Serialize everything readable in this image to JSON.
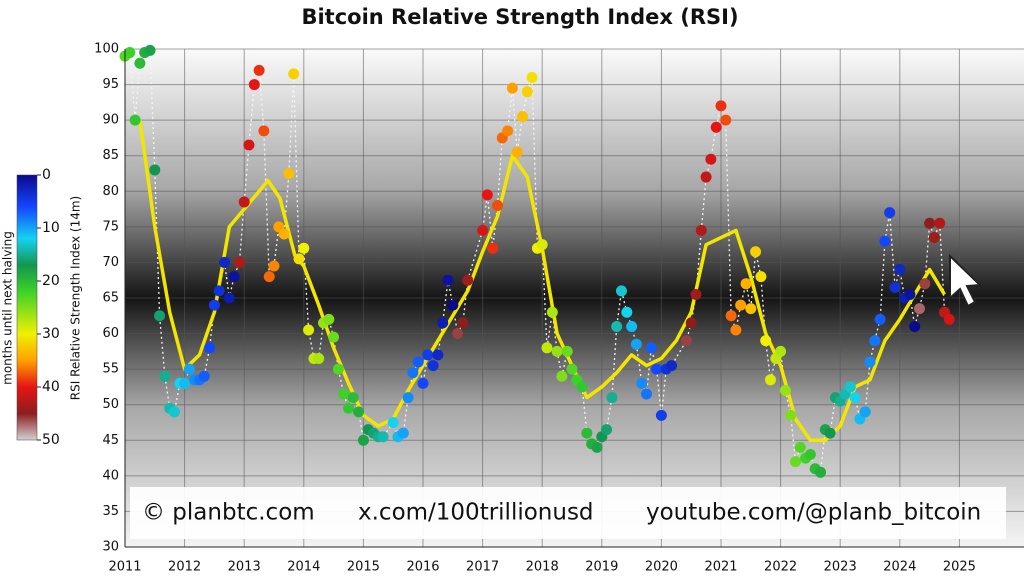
{
  "chart_data": {
    "type": "scatter",
    "title": "Bitcoin Relative Strength Index (RSI)",
    "ylabel": "RSI Relative Strength Index (14m)",
    "xlim": [
      2011,
      2026
    ],
    "xticks": [
      2011,
      2012,
      2013,
      2014,
      2015,
      2016,
      2017,
      2018,
      2019,
      2020,
      2021,
      2022,
      2023,
      2024,
      2025
    ],
    "ylim": [
      30,
      100
    ],
    "yticks": [
      30,
      35,
      40,
      45,
      50,
      55,
      60,
      65,
      70,
      75,
      80,
      85,
      90,
      95,
      100
    ],
    "grid": true,
    "series": [
      {
        "x": [
          2011.0,
          2011.08,
          2011.17,
          2011.25,
          2011.33,
          2011.42,
          2011.5,
          2011.58,
          2011.67,
          2011.75,
          2011.83,
          2011.92,
          2012.0,
          2012.08,
          2012.17,
          2012.25,
          2012.33,
          2012.42,
          2012.5,
          2012.58,
          2012.67,
          2012.75,
          2012.83,
          2012.92,
          2013.0,
          2013.08,
          2013.17,
          2013.25,
          2013.33,
          2013.42,
          2013.5,
          2013.58,
          2013.67,
          2013.75,
          2013.83,
          2013.92,
          2014.0,
          2014.08,
          2014.17,
          2014.25,
          2014.33,
          2014.42,
          2014.5,
          2014.58,
          2014.67,
          2014.75,
          2014.83,
          2014.92,
          2015.0,
          2015.08,
          2015.17,
          2015.25,
          2015.33,
          2015.5,
          2015.58,
          2015.67,
          2015.75,
          2015.83,
          2015.92,
          2016.0,
          2016.08,
          2016.17,
          2016.25,
          2016.33,
          2016.42,
          2016.5,
          2016.58,
          2016.67,
          2016.75,
          2017.0,
          2017.08,
          2017.17,
          2017.25,
          2017.33,
          2017.42,
          2017.5,
          2017.58,
          2017.67,
          2017.75,
          2017.83,
          2017.92,
          2018.0,
          2018.08,
          2018.17,
          2018.25,
          2018.33,
          2018.42,
          2018.5,
          2018.58,
          2018.67,
          2018.75,
          2018.83,
          2018.92,
          2019.0,
          2019.08,
          2019.17,
          2019.25,
          2019.33,
          2019.42,
          2019.5,
          2019.58,
          2019.67,
          2019.75,
          2019.83,
          2019.92,
          2020.0,
          2020.08,
          2020.17,
          2020.42,
          2020.5,
          2020.58,
          2020.67,
          2020.75,
          2020.83,
          2020.92,
          2021.0,
          2021.08,
          2021.17,
          2021.25,
          2021.33,
          2021.42,
          2021.5,
          2021.58,
          2021.67,
          2021.75,
          2021.83,
          2021.92,
          2022.0,
          2022.08,
          2022.17,
          2022.25,
          2022.33,
          2022.42,
          2022.5,
          2022.58,
          2022.67,
          2022.75,
          2022.83,
          2022.92,
          2023.0,
          2023.08,
          2023.17,
          2023.25,
          2023.33,
          2023.42,
          2023.5,
          2023.58,
          2023.67,
          2023.75,
          2023.83,
          2023.92,
          2024.0,
          2024.08,
          2024.17,
          2024.25,
          2024.33,
          2024.42,
          2024.5,
          2024.58,
          2024.67,
          2024.75,
          2024.83
        ],
        "values": [
          99,
          99.5,
          90,
          98,
          99.5,
          99.8,
          83,
          62.5,
          54,
          49.5,
          49,
          53,
          53,
          55,
          53.5,
          53.5,
          54,
          58,
          64,
          66,
          70,
          65,
          68,
          70,
          78.5,
          86.5,
          95,
          97,
          88.5,
          68,
          69.5,
          75,
          74,
          82.5,
          96.5,
          70.5,
          72,
          60.5,
          56.5,
          56.5,
          61.5,
          62,
          59.5,
          55,
          51.5,
          49.5,
          51,
          49,
          45,
          46.5,
          46,
          45.5,
          45.5,
          47.5,
          45.5,
          46,
          51,
          54.5,
          56,
          53,
          57,
          55.5,
          57,
          61.5,
          67.5,
          64,
          60,
          61.5,
          67.5,
          74.5,
          79.5,
          72,
          78,
          87.5,
          88.5,
          94.5,
          85.5,
          90.5,
          94,
          96,
          72,
          72.5,
          58,
          63,
          57.5,
          54,
          57.5,
          55,
          53.5,
          52.5,
          46,
          44.5,
          44,
          45.5,
          46.5,
          51,
          61,
          66,
          63,
          61,
          58.5,
          53,
          51.5,
          58,
          55,
          48.5,
          55,
          55.5,
          59,
          61.5,
          65.5,
          74.5,
          82,
          84.5,
          89,
          92,
          90,
          62.5,
          60.5,
          64,
          67,
          63.5,
          71.5,
          68,
          59,
          53.5,
          56.5,
          57.5,
          52,
          48.5,
          42,
          44,
          42.5,
          43,
          41,
          40.5,
          46.5,
          46,
          51,
          50.5,
          51.5,
          52.5,
          51,
          48,
          49,
          56,
          59,
          62,
          73,
          77,
          66.5,
          69,
          65,
          65.5,
          61,
          63.5,
          67,
          75.5,
          73.5,
          75.5,
          63,
          62
        ],
        "color_values": [
          23,
          22,
          21,
          20,
          19,
          18,
          17,
          16,
          15,
          14,
          13,
          12,
          11,
          10,
          9,
          8,
          7,
          6,
          5,
          4,
          3,
          2,
          1,
          43,
          42,
          41,
          40,
          39,
          38,
          37,
          36,
          35,
          34,
          33,
          32,
          31,
          30,
          29,
          28,
          27,
          26,
          25,
          24,
          23,
          22,
          21,
          20,
          19,
          18,
          17,
          16,
          15,
          14,
          12,
          11,
          10,
          9,
          8,
          7,
          6,
          5,
          4,
          3,
          2,
          1,
          0,
          46,
          45,
          44,
          41,
          40,
          39,
          38,
          37,
          36,
          35,
          34,
          33,
          32,
          31,
          30,
          29,
          28,
          27,
          26,
          25,
          24,
          23,
          22,
          21,
          20,
          19,
          18,
          17,
          16,
          15,
          14,
          13,
          12,
          11,
          10,
          9,
          8,
          7,
          6,
          5,
          4,
          3,
          46,
          45,
          44,
          43,
          42,
          41,
          40,
          39,
          38,
          37,
          36,
          35,
          34,
          33,
          32,
          31,
          30,
          29,
          28,
          27,
          26,
          25,
          24,
          23,
          22,
          21,
          20,
          19,
          18,
          17,
          16,
          15,
          14,
          13,
          12,
          11,
          10,
          9,
          8,
          7,
          6,
          5,
          4,
          3,
          2,
          1,
          0,
          47,
          46,
          45,
          44,
          43,
          42,
          41
        ]
      }
    ],
    "trend": {
      "color": "#f2e600",
      "x": [
        2011.25,
        2011.5,
        2011.75,
        2012.0,
        2012.25,
        2012.5,
        2012.75,
        2013.0,
        2013.25,
        2013.4,
        2013.6,
        2013.85,
        2014.0,
        2014.25,
        2014.5,
        2014.75,
        2015.0,
        2015.25,
        2015.5,
        2015.75,
        2016.0,
        2016.25,
        2016.5,
        2016.75,
        2017.0,
        2017.25,
        2017.5,
        2017.75,
        2018.0,
        2018.25,
        2018.5,
        2018.75,
        2019.0,
        2019.25,
        2019.5,
        2019.75,
        2020.0,
        2020.25,
        2020.5,
        2020.75,
        2021.0,
        2021.25,
        2021.5,
        2021.75,
        2022.0,
        2022.25,
        2022.5,
        2022.75,
        2023.0,
        2023.25,
        2023.5,
        2023.75,
        2024.0,
        2024.25,
        2024.5,
        2024.75
      ],
      "values": [
        90,
        75,
        63,
        55,
        57,
        63,
        75,
        77.5,
        80,
        81.5,
        79,
        71,
        69.5,
        64,
        58,
        53,
        48.5,
        47,
        48,
        52,
        55.5,
        59,
        62.5,
        66,
        71.5,
        76.5,
        85,
        82,
        72,
        60,
        55.5,
        51,
        52.5,
        54.5,
        57,
        55.5,
        56.5,
        59,
        63,
        72.5,
        73.5,
        74.5,
        68,
        60,
        55.5,
        48,
        45,
        45,
        47,
        52.5,
        53.5,
        59,
        62,
        65.5,
        69,
        65.5
      ]
    },
    "colorbar": {
      "label": "months until next halving",
      "lim": [
        0,
        50
      ],
      "ticks": [
        0,
        10,
        20,
        30,
        40,
        50
      ],
      "colormap": [
        [
          0,
          "#0a0a8c"
        ],
        [
          6,
          "#1446ff"
        ],
        [
          12,
          "#14d2f0"
        ],
        [
          17,
          "#149650"
        ],
        [
          22,
          "#3cd228"
        ],
        [
          30,
          "#f0f000"
        ],
        [
          35,
          "#ffa000"
        ],
        [
          40,
          "#e61414"
        ],
        [
          45,
          "#8c1e1e"
        ],
        [
          50,
          "#d2d2d2"
        ]
      ]
    },
    "annotations": [
      "© planbtc.com",
      "x.com/100trillionusd",
      "youtube.com/@planb_bitcoin"
    ]
  }
}
